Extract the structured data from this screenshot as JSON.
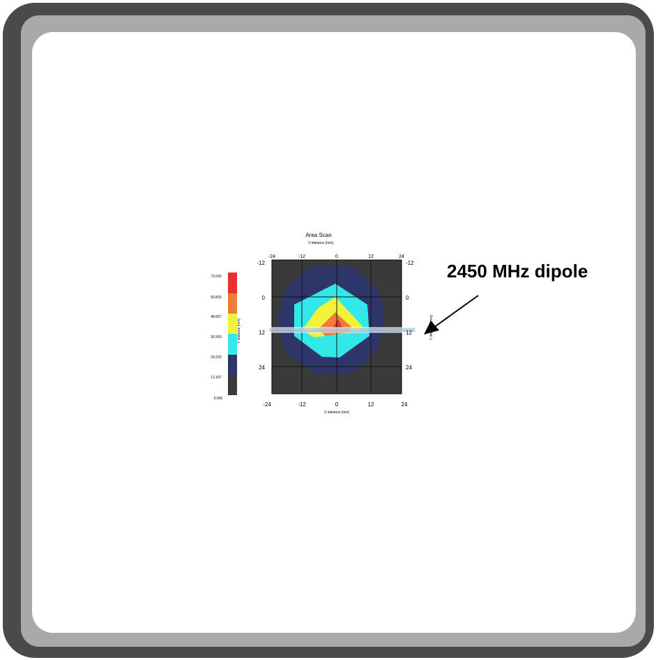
{
  "annotation": {
    "label": "2450 MHz dipole"
  },
  "scan": {
    "title": "Area Scan",
    "x_axis_label": "X distance [mm]",
    "y_axis_label": "Y distance [mm]",
    "y_axis_label_right": "Y distance [mm]",
    "x_ticks": [
      "-24",
      "-12",
      "0",
      "12",
      "24"
    ],
    "y_ticks": [
      "-12",
      "0",
      "12",
      "24"
    ],
    "legend": [
      "73.000",
      "60.833",
      "48.667",
      "36.500",
      "24.333",
      "12.167",
      "0.000"
    ],
    "colors": {
      "background": "#3a3a3a",
      "navy": "#2e3568",
      "cyan": "#33e8e8",
      "yellow": "#f2f23a",
      "orange": "#f07a3a",
      "red": "#e83030",
      "legend": [
        "#e83030",
        "#f07a3a",
        "#f2f23a",
        "#33e8e8",
        "#2e3568",
        "#3a3a3a"
      ]
    }
  }
}
